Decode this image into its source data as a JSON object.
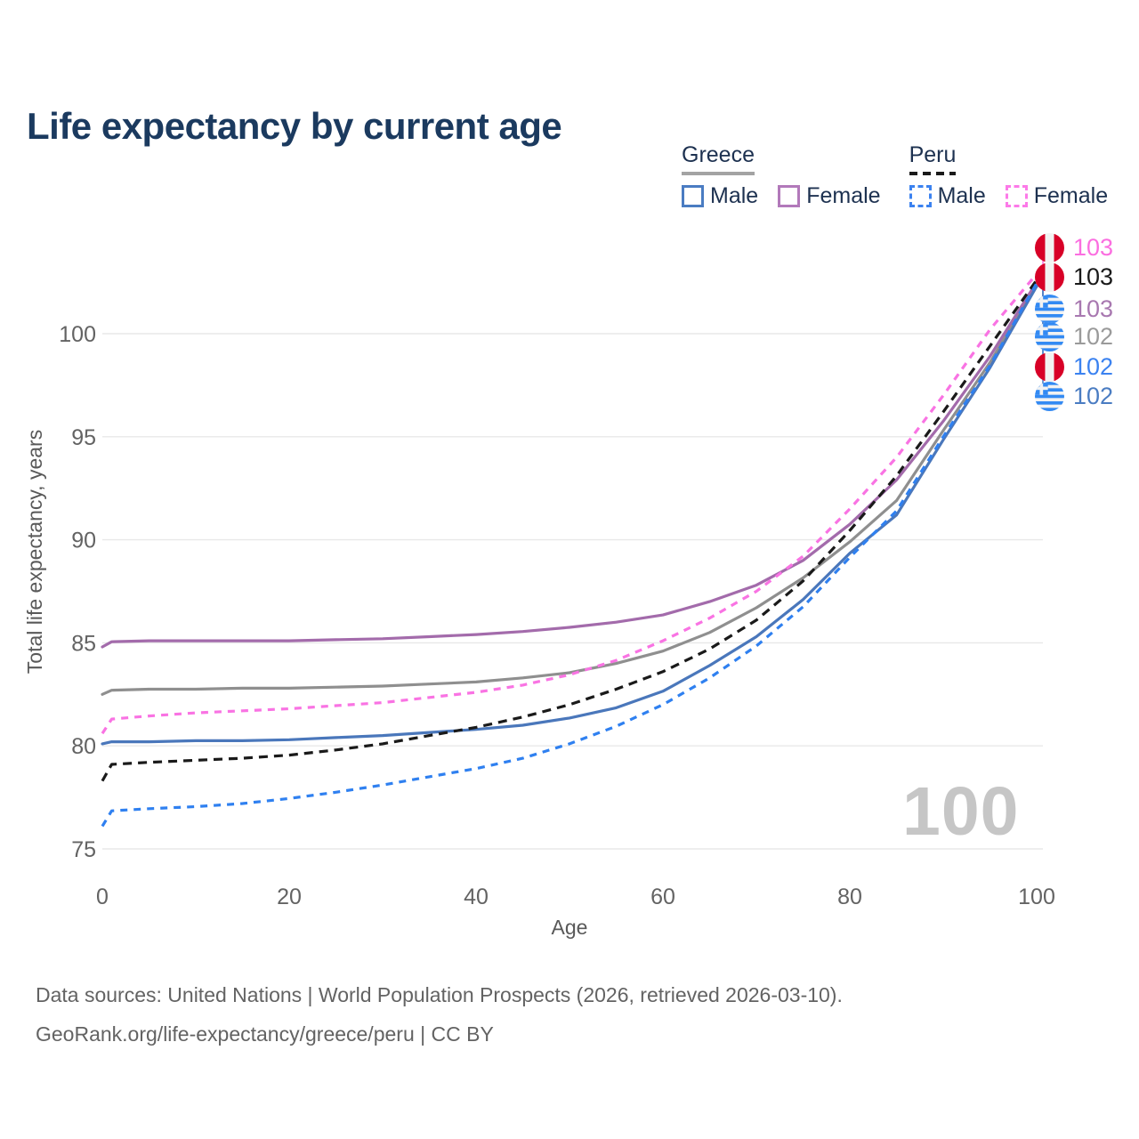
{
  "header": {
    "title": "Life expectancy by current age"
  },
  "legend": {
    "groups": [
      {
        "label": "Greece",
        "underline_style": "solid",
        "underline_color": "#a3a3a3",
        "items": [
          {
            "label": "Male",
            "color": "#4a7cc2",
            "dashed": false
          },
          {
            "label": "Female",
            "color": "#b279ba",
            "dashed": false
          }
        ]
      },
      {
        "label": "Peru",
        "underline_style": "dashed",
        "underline_color": "#1a1a1a",
        "items": [
          {
            "label": "Male",
            "color": "#3b82f0",
            "dashed": true
          },
          {
            "label": "Female",
            "color": "#fc7ae8",
            "dashed": true
          }
        ]
      }
    ]
  },
  "chart_data": {
    "type": "line",
    "title": "Life expectancy by current age",
    "xlabel": "Age",
    "ylabel": "Total life expectancy, years",
    "xlim": [
      0,
      100
    ],
    "ylim": [
      75,
      103
    ],
    "x_ticks": [
      0,
      20,
      40,
      60,
      80,
      100
    ],
    "y_ticks": [
      75,
      80,
      85,
      90,
      95,
      100
    ],
    "grid": "horizontal-only",
    "ages": [
      0,
      1,
      5,
      10,
      15,
      20,
      25,
      30,
      35,
      40,
      45,
      50,
      55,
      60,
      65,
      70,
      75,
      80,
      85,
      90,
      95,
      100
    ],
    "series": [
      {
        "id": "greece_total",
        "name": "Greece",
        "country": "Greece",
        "sex": "all",
        "color": "#8f8f8f",
        "dash": null,
        "values": [
          82.5,
          82.7,
          82.75,
          82.75,
          82.8,
          82.8,
          82.85,
          82.9,
          83.0,
          83.1,
          83.3,
          83.55,
          84.0,
          84.6,
          85.5,
          86.7,
          88.15,
          89.9,
          91.9,
          95.3,
          98.6,
          102.4
        ]
      },
      {
        "id": "greece_female",
        "name": "Greece Female",
        "country": "Greece",
        "sex": "female",
        "color": "#a36bab",
        "dash": null,
        "values": [
          84.8,
          85.05,
          85.1,
          85.1,
          85.1,
          85.1,
          85.15,
          85.2,
          85.3,
          85.4,
          85.55,
          85.75,
          86.0,
          86.35,
          87.0,
          87.8,
          89.0,
          90.75,
          92.9,
          95.75,
          98.9,
          102.5
        ]
      },
      {
        "id": "greece_male",
        "name": "Greece Male",
        "country": "Greece",
        "sex": "male",
        "color": "#4a77bb",
        "dash": null,
        "values": [
          80.1,
          80.2,
          80.2,
          80.25,
          80.25,
          80.3,
          80.4,
          80.5,
          80.65,
          80.8,
          81.0,
          81.35,
          81.85,
          82.65,
          83.9,
          85.3,
          87.1,
          89.35,
          91.2,
          94.85,
          98.35,
          102.3
        ]
      },
      {
        "id": "peru_total",
        "name": "Peru",
        "country": "Peru",
        "sex": "all",
        "color": "#1a1a1a",
        "dash": "10 7",
        "values": [
          78.3,
          79.1,
          79.2,
          79.3,
          79.4,
          79.55,
          79.8,
          80.1,
          80.5,
          80.9,
          81.4,
          82.0,
          82.75,
          83.6,
          84.7,
          86.1,
          88.0,
          90.45,
          93.1,
          96.2,
          99.4,
          102.6
        ]
      },
      {
        "id": "peru_male",
        "name": "Peru Male",
        "country": "Peru",
        "sex": "male",
        "color": "#2f80f0",
        "dash": "8 7",
        "values": [
          76.1,
          76.85,
          76.95,
          77.05,
          77.2,
          77.45,
          77.75,
          78.1,
          78.5,
          78.9,
          79.4,
          80.1,
          80.95,
          82.0,
          83.3,
          84.85,
          86.75,
          89.15,
          91.4,
          95.0,
          98.45,
          102.45
        ]
      },
      {
        "id": "peru_female",
        "name": "Peru Female",
        "country": "Peru",
        "sex": "female",
        "color": "#f973e3",
        "dash": "8 7",
        "values": [
          80.6,
          81.3,
          81.45,
          81.6,
          81.7,
          81.8,
          81.95,
          82.1,
          82.35,
          82.6,
          82.95,
          83.45,
          84.15,
          85.1,
          86.2,
          87.5,
          89.2,
          91.5,
          94.0,
          97.0,
          100.2,
          102.9
        ]
      }
    ],
    "end_labels": [
      {
        "series": "peru_female",
        "flag": "peru",
        "value": 103,
        "color": "#fb6ee0"
      },
      {
        "series": "peru_total",
        "flag": "peru",
        "value": 103,
        "color": "#1a1a1a"
      },
      {
        "series": "greece_female",
        "flag": "greece",
        "value": 103,
        "color": "#a878b0"
      },
      {
        "series": "greece_total",
        "flag": "greece",
        "value": 102,
        "color": "#9a9a9a"
      },
      {
        "series": "peru_male",
        "flag": "peru",
        "value": 102,
        "color": "#3b82f0"
      },
      {
        "series": "greece_male",
        "flag": "greece",
        "value": 102,
        "color": "#4a7cc2"
      }
    ],
    "legend_position": "top-right"
  },
  "watermark": "100",
  "footer": {
    "line1": "Data sources: United Nations | World Population Prospects (2026, retrieved 2026-03-10).",
    "line2": "GeoRank.org/life-expectancy/greece/peru | CC BY"
  }
}
